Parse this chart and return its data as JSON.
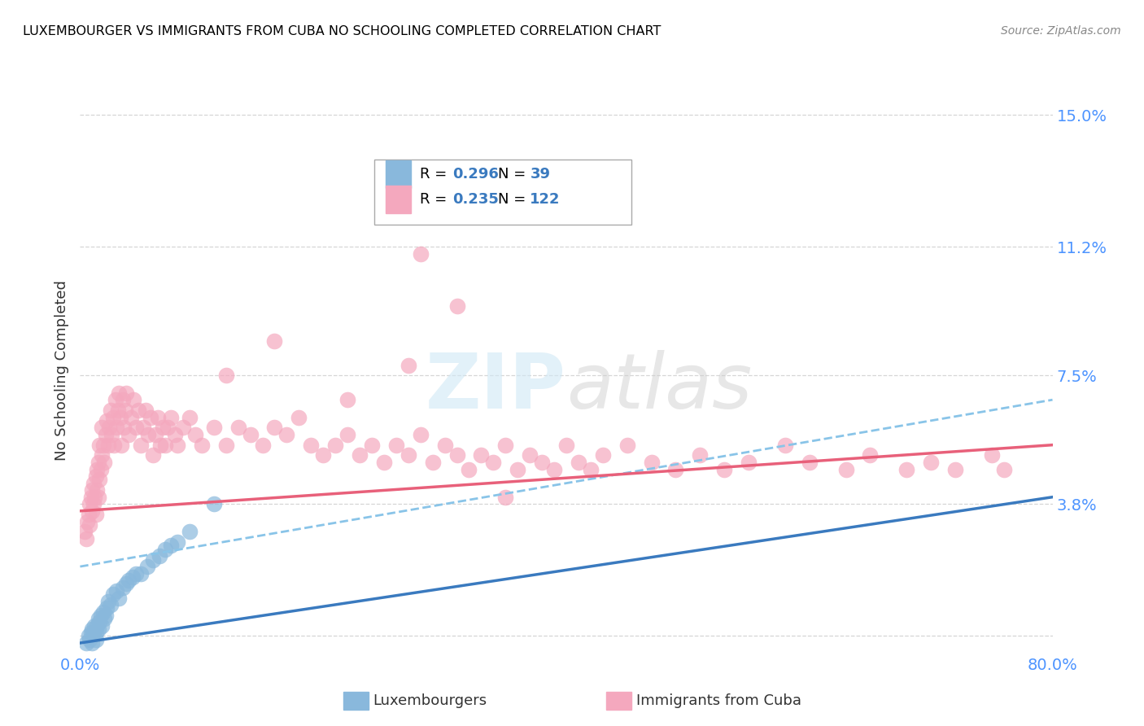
{
  "title": "LUXEMBOURGER VS IMMIGRANTS FROM CUBA NO SCHOOLING COMPLETED CORRELATION CHART",
  "source": "Source: ZipAtlas.com",
  "ylabel": "No Schooling Completed",
  "xlim": [
    0.0,
    0.8
  ],
  "ylim": [
    -0.005,
    0.158
  ],
  "yticks": [
    0.0,
    0.038,
    0.075,
    0.112,
    0.15
  ],
  "ytick_labels": [
    "",
    "3.8%",
    "7.5%",
    "11.2%",
    "15.0%"
  ],
  "xticks": [
    0.0,
    0.1,
    0.2,
    0.3,
    0.4,
    0.5,
    0.6,
    0.7,
    0.8
  ],
  "xtick_labels": [
    "0.0%",
    "",
    "",
    "",
    "",
    "",
    "",
    "",
    "80.0%"
  ],
  "blue_color": "#89b8dc",
  "pink_color": "#f4a8be",
  "blue_line_color": "#3a7abf",
  "pink_line_color": "#e8607a",
  "blue_dash_color": "#89c4e8",
  "legend_label1": "Luxembourgers",
  "legend_label2": "Immigrants from Cuba",
  "watermark": "ZIPatlas",
  "background_color": "#ffffff",
  "grid_color": "#cccccc",
  "axis_tick_color": "#4d94ff",
  "title_color": "#000000",
  "source_color": "#888888",
  "blue_scatter_x": [
    0.005,
    0.007,
    0.008,
    0.009,
    0.01,
    0.01,
    0.011,
    0.012,
    0.013,
    0.013,
    0.014,
    0.015,
    0.015,
    0.016,
    0.017,
    0.018,
    0.019,
    0.02,
    0.021,
    0.022,
    0.023,
    0.025,
    0.027,
    0.03,
    0.032,
    0.035,
    0.038,
    0.04,
    0.043,
    0.046,
    0.05,
    0.055,
    0.06,
    0.065,
    0.07,
    0.075,
    0.08,
    0.09,
    0.11
  ],
  "blue_scatter_y": [
    -0.002,
    0.0,
    -0.001,
    0.001,
    0.002,
    -0.002,
    0.001,
    0.003,
    0.001,
    -0.001,
    0.003,
    0.002,
    0.005,
    0.004,
    0.006,
    0.003,
    0.007,
    0.005,
    0.006,
    0.008,
    0.01,
    0.009,
    0.012,
    0.013,
    0.011,
    0.014,
    0.015,
    0.016,
    0.017,
    0.018,
    0.018,
    0.02,
    0.022,
    0.023,
    0.025,
    0.026,
    0.027,
    0.03,
    0.038
  ],
  "pink_scatter_x": [
    0.004,
    0.005,
    0.006,
    0.007,
    0.008,
    0.008,
    0.009,
    0.01,
    0.01,
    0.011,
    0.011,
    0.012,
    0.013,
    0.013,
    0.014,
    0.014,
    0.015,
    0.015,
    0.016,
    0.016,
    0.017,
    0.018,
    0.018,
    0.019,
    0.02,
    0.021,
    0.022,
    0.023,
    0.024,
    0.025,
    0.026,
    0.027,
    0.028,
    0.029,
    0.03,
    0.031,
    0.032,
    0.033,
    0.034,
    0.035,
    0.036,
    0.037,
    0.038,
    0.04,
    0.042,
    0.044,
    0.046,
    0.048,
    0.05,
    0.052,
    0.054,
    0.056,
    0.058,
    0.06,
    0.062,
    0.064,
    0.066,
    0.068,
    0.07,
    0.072,
    0.075,
    0.078,
    0.08,
    0.085,
    0.09,
    0.095,
    0.1,
    0.11,
    0.12,
    0.13,
    0.14,
    0.15,
    0.16,
    0.17,
    0.18,
    0.19,
    0.2,
    0.21,
    0.22,
    0.23,
    0.24,
    0.25,
    0.26,
    0.27,
    0.28,
    0.29,
    0.3,
    0.31,
    0.32,
    0.33,
    0.34,
    0.35,
    0.36,
    0.37,
    0.38,
    0.39,
    0.4,
    0.41,
    0.42,
    0.43,
    0.45,
    0.47,
    0.49,
    0.51,
    0.53,
    0.55,
    0.58,
    0.6,
    0.63,
    0.65,
    0.68,
    0.7,
    0.72,
    0.75,
    0.76,
    0.27,
    0.31,
    0.35,
    0.28,
    0.22,
    0.16,
    0.12
  ],
  "pink_scatter_y": [
    0.03,
    0.028,
    0.033,
    0.035,
    0.032,
    0.038,
    0.04,
    0.036,
    0.042,
    0.038,
    0.044,
    0.04,
    0.046,
    0.035,
    0.048,
    0.042,
    0.04,
    0.05,
    0.045,
    0.055,
    0.048,
    0.052,
    0.06,
    0.055,
    0.05,
    0.058,
    0.062,
    0.055,
    0.06,
    0.065,
    0.058,
    0.063,
    0.055,
    0.068,
    0.06,
    0.065,
    0.07,
    0.063,
    0.055,
    0.068,
    0.06,
    0.065,
    0.07,
    0.058,
    0.063,
    0.068,
    0.06,
    0.065,
    0.055,
    0.06,
    0.065,
    0.058,
    0.063,
    0.052,
    0.058,
    0.063,
    0.055,
    0.06,
    0.055,
    0.06,
    0.063,
    0.058,
    0.055,
    0.06,
    0.063,
    0.058,
    0.055,
    0.06,
    0.055,
    0.06,
    0.058,
    0.055,
    0.06,
    0.058,
    0.063,
    0.055,
    0.052,
    0.055,
    0.058,
    0.052,
    0.055,
    0.05,
    0.055,
    0.052,
    0.058,
    0.05,
    0.055,
    0.052,
    0.048,
    0.052,
    0.05,
    0.055,
    0.048,
    0.052,
    0.05,
    0.048,
    0.055,
    0.05,
    0.048,
    0.052,
    0.055,
    0.05,
    0.048,
    0.052,
    0.048,
    0.05,
    0.055,
    0.05,
    0.048,
    0.052,
    0.048,
    0.05,
    0.048,
    0.052,
    0.048,
    0.078,
    0.095,
    0.04,
    0.11,
    0.068,
    0.085,
    0.075
  ]
}
